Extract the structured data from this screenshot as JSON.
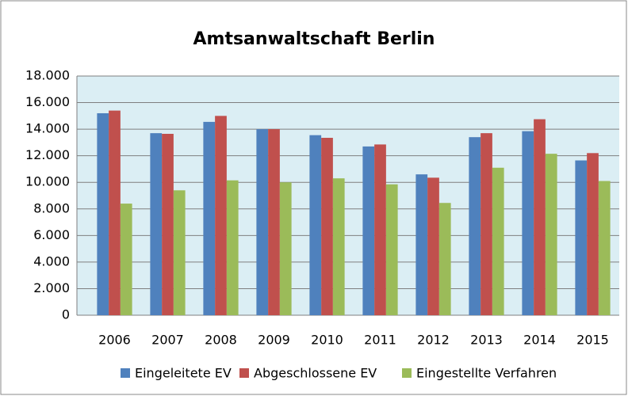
{
  "chart_data": {
    "type": "bar",
    "title": "Amtsanwaltschaft Berlin",
    "categories": [
      "2006",
      "2007",
      "2008",
      "2009",
      "2010",
      "2011",
      "2012",
      "2013",
      "2014",
      "2015"
    ],
    "series": [
      {
        "name": "Eingeleitete EV",
        "color": "#4f81bd",
        "values": [
          15200,
          13700,
          14550,
          14000,
          13550,
          12700,
          10600,
          13400,
          13850,
          11650
        ]
      },
      {
        "name": "Abgeschlossene EV",
        "color": "#c0504d",
        "values": [
          15400,
          13650,
          15000,
          14000,
          13350,
          12850,
          10350,
          13700,
          14750,
          12200
        ]
      },
      {
        "name": "Eingestellte Verfahren",
        "color": "#9bbb59",
        "values": [
          8400,
          9400,
          10150,
          10000,
          10300,
          9850,
          8450,
          11100,
          12150,
          10100
        ]
      }
    ],
    "ylim": [
      0,
      18000
    ],
    "yticks": [
      0,
      {
        "value": 2000,
        "label": "2.000"
      },
      {
        "value": 4000,
        "label": "4.000"
      },
      {
        "value": 6000,
        "label": "6.000"
      },
      {
        "value": 8000,
        "label": "8.000"
      },
      {
        "value": 10000,
        "label": "10.000"
      },
      {
        "value": 12000,
        "label": "12.000"
      },
      {
        "value": 14000,
        "label": "14.000"
      },
      {
        "value": 16000,
        "label": "16.000"
      },
      {
        "value": 18000,
        "label": "18.000"
      }
    ],
    "grid": true,
    "legend": "bottom"
  }
}
